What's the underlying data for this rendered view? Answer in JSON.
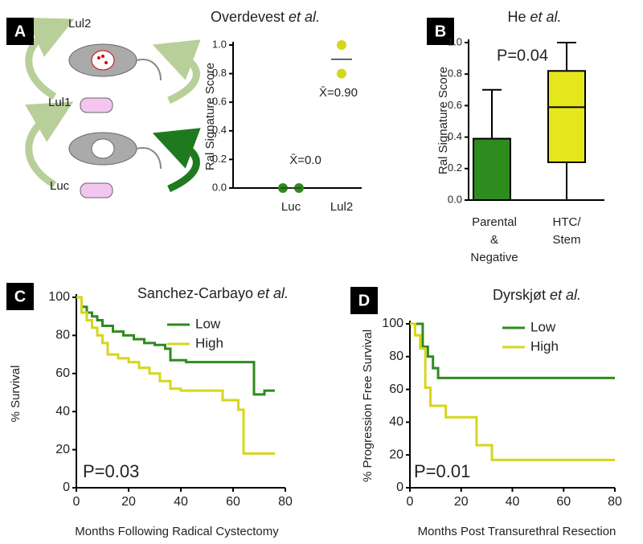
{
  "panel_labels": [
    "A",
    "B",
    "C",
    "D"
  ],
  "diagram_labels": [
    "Lul2",
    "Lul1",
    "Luc"
  ],
  "chart_data": [
    {
      "type": "dot",
      "title": "Overdevest",
      "title_italic": "et al.",
      "ylabel": "Ral Signature Score",
      "categories": [
        "Luc",
        "Lul2"
      ],
      "values": [
        [
          0,
          0
        ],
        [
          1.0,
          0.8
        ]
      ],
      "colors": [
        "#2e8b1e",
        "#d6d61c"
      ],
      "means": [
        0.0,
        0.9
      ],
      "mean_labels": [
        "X̄=0.0",
        "X̄=0.90"
      ],
      "ylim": [
        0,
        1
      ],
      "yticks": [
        {
          "value": 0,
          "label": "0.0"
        },
        {
          "value": 0.2,
          "label": "0.2"
        },
        {
          "value": 0.4,
          "label": "0.4"
        },
        {
          "value": 0.6,
          "label": "0.6"
        },
        {
          "value": 0.8,
          "label": "0.8"
        },
        {
          "value": 1.0,
          "label": "1.0"
        }
      ]
    },
    {
      "type": "box",
      "title": "He",
      "title_italic": "et al.",
      "ylabel": "Ral Signature Score",
      "annotation": "P=0.04",
      "categories": [
        [
          "Parental",
          "&",
          "Negative"
        ],
        [
          "HTC/",
          "Stem"
        ]
      ],
      "boxes": [
        {
          "color": "#2e8b1e",
          "min": 0,
          "q1": 0,
          "median": 0,
          "q3": 0.39,
          "max": 0.7
        },
        {
          "color": "#e6e61c",
          "min": 0,
          "q1": 0.24,
          "median": 0.59,
          "q3": 0.82,
          "max": 1.0
        }
      ],
      "ylim": [
        0,
        1
      ],
      "yticks": [
        {
          "value": 0,
          "label": "0.0"
        },
        {
          "value": 0.2,
          "label": "0.2"
        },
        {
          "value": 0.4,
          "label": "0.4"
        },
        {
          "value": 0.6,
          "label": "0.6"
        },
        {
          "value": 0.8,
          "label": "0.8"
        },
        {
          "value": 1.0,
          "label": "1.0"
        }
      ]
    },
    {
      "type": "step",
      "title": "Sanchez-Carbayo",
      "title_italic": "et al.",
      "annotation": "P=0.03",
      "xlabel": "Months Following Radical Cystectomy",
      "ylabel": "% Survival",
      "xlim": [
        0,
        80
      ],
      "xticks": [
        0,
        20,
        40,
        60,
        80
      ],
      "ylim": [
        0,
        100
      ],
      "yticks": [
        0,
        20,
        40,
        60,
        80,
        100
      ],
      "series": [
        {
          "name": "Low",
          "color": "#2e8b1e",
          "x": [
            0,
            2,
            4,
            6,
            8,
            10,
            14,
            18,
            22,
            26,
            30,
            34,
            36,
            42,
            50,
            60,
            68,
            72,
            76
          ],
          "values": [
            100,
            95,
            92,
            90,
            88,
            85,
            82,
            80,
            78,
            76,
            75,
            73,
            67,
            66,
            66,
            66,
            49,
            51,
            51
          ]
        },
        {
          "name": "High",
          "color": "#d6d61c",
          "x": [
            0,
            2,
            4,
            6,
            8,
            10,
            12,
            16,
            20,
            24,
            28,
            32,
            36,
            40,
            48,
            56,
            62,
            64,
            72,
            76
          ],
          "values": [
            100,
            92,
            88,
            84,
            80,
            76,
            70,
            68,
            66,
            63,
            60,
            56,
            52,
            51,
            51,
            46,
            41,
            18,
            18,
            18
          ]
        }
      ]
    },
    {
      "type": "step",
      "title": "Dyrskjøt",
      "title_italic": "et al.",
      "annotation": "P=0.01",
      "xlabel": "Months Post Transurethral Resection",
      "ylabel": "% Progression Free Survival",
      "xlim": [
        0,
        80
      ],
      "xticks": [
        0,
        20,
        40,
        60,
        80
      ],
      "ylim": [
        0,
        100
      ],
      "yticks": [
        0,
        20,
        40,
        60,
        80,
        100
      ],
      "series": [
        {
          "name": "Low",
          "color": "#2e8b1e",
          "x": [
            0,
            5,
            7,
            9,
            11,
            14,
            80
          ],
          "values": [
            100,
            86,
            80,
            73,
            67,
            67,
            67
          ]
        },
        {
          "name": "High",
          "color": "#d6d61c",
          "x": [
            0,
            2,
            4,
            6,
            8,
            14,
            20,
            26,
            30,
            32,
            80
          ],
          "values": [
            100,
            93,
            85,
            61,
            50,
            43,
            43,
            26,
            26,
            17,
            17
          ]
        }
      ]
    }
  ]
}
